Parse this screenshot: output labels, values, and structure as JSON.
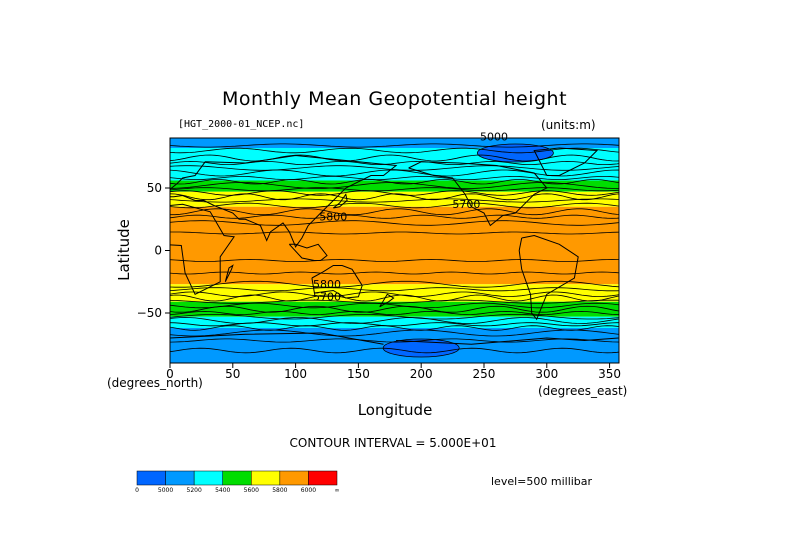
{
  "chart_data": {
    "type": "heatmap",
    "title": "Monthly Mean Geopotential height",
    "file_label": "[HGT_2000-01_NCEP.nc]",
    "units_label": "(units:m)",
    "xlabel": "Longitude",
    "ylabel": "Latitude",
    "x_unit_label": "(degrees_east)",
    "y_unit_label": "(degrees_north)",
    "xlim": [
      0,
      357.5
    ],
    "ylim": [
      -90,
      90
    ],
    "x_ticks": [
      0,
      50,
      100,
      150,
      200,
      250,
      300,
      350
    ],
    "y_ticks": [
      50,
      0,
      -50
    ],
    "contour_interval_text": "CONTOUR INTERVAL = 5.000E+01",
    "level_text": "level=500 millibar",
    "contour_labels": [
      {
        "text": "5000",
        "lon": 258,
        "lat": 88
      },
      {
        "text": "5700",
        "lon": 236,
        "lat": 34
      },
      {
        "text": "5800",
        "lon": 130,
        "lat": 24
      },
      {
        "text": "5800",
        "lon": 125,
        "lat": -30
      },
      {
        "text": "5700",
        "lon": 125,
        "lat": -40
      }
    ],
    "colorbar": {
      "levels": [
        "0",
        "5000",
        "5200",
        "5400",
        "5600",
        "5800",
        "6000",
        "∞"
      ],
      "colors": [
        "#0066ff",
        "#0099ff",
        "#00ffff",
        "#00dd00",
        "#ffff00",
        "#ff9900",
        "#ff0000"
      ]
    },
    "field_bands_by_latitude": [
      {
        "lat_from": 90,
        "lat_to": 82,
        "value": 5150
      },
      {
        "lat_from": 82,
        "lat_to": 66,
        "value": 5200
      },
      {
        "lat_from": 66,
        "lat_to": 56,
        "value": 5350
      },
      {
        "lat_from": 56,
        "lat_to": 47,
        "value": 5500
      },
      {
        "lat_from": 47,
        "lat_to": 35,
        "value": 5700
      },
      {
        "lat_from": 35,
        "lat_to": 22,
        "value": 5800
      },
      {
        "lat_from": 22,
        "lat_to": -27,
        "value": 5880
      },
      {
        "lat_from": -27,
        "lat_to": -41,
        "value": 5700
      },
      {
        "lat_from": -41,
        "lat_to": -53,
        "value": 5500
      },
      {
        "lat_from": -53,
        "lat_to": -62,
        "value": 5300
      },
      {
        "lat_from": -62,
        "lat_to": -90,
        "value": 5100
      }
    ],
    "low_centers": [
      {
        "lon": 275,
        "lat": 78,
        "value": 4980
      },
      {
        "lon": 200,
        "lat": -78,
        "value": 4980
      }
    ]
  }
}
